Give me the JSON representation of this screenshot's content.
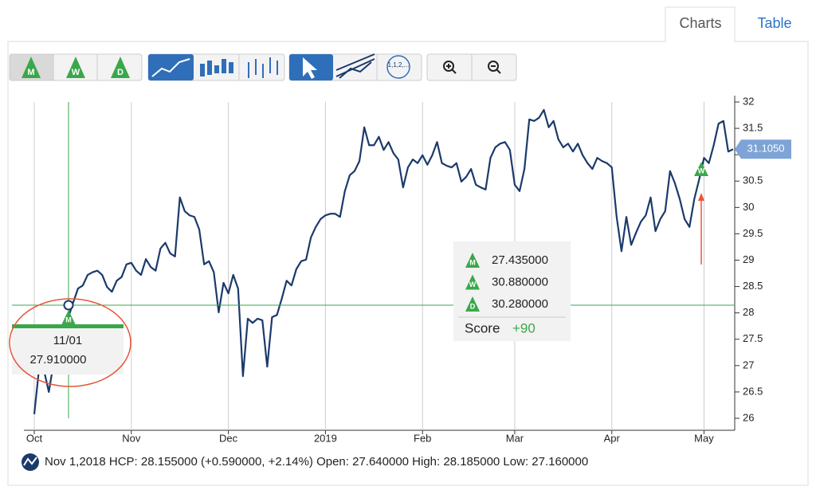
{
  "tabs": [
    "Charts",
    "Table"
  ],
  "toolbar": {
    "periods": [
      "M",
      "W",
      "D"
    ]
  },
  "chart_data": {
    "type": "line",
    "color": "#1b3a6b",
    "categories": [
      "Oct",
      null,
      null,
      null,
      null,
      null,
      null,
      null,
      null,
      null,
      null,
      null,
      null,
      null,
      null,
      null,
      null,
      null,
      null,
      null,
      "Nov",
      null,
      null,
      null,
      null,
      null,
      null,
      null,
      null,
      null,
      null,
      null,
      null,
      null,
      null,
      null,
      null,
      null,
      null,
      null,
      "Dec",
      null,
      null,
      null,
      null,
      null,
      null,
      null,
      null,
      null,
      null,
      null,
      null,
      null,
      null,
      null,
      null,
      null,
      null,
      null,
      "2019",
      null,
      null,
      null,
      null,
      null,
      null,
      null,
      null,
      null,
      null,
      null,
      null,
      null,
      null,
      null,
      null,
      null,
      null,
      null,
      "Feb",
      null,
      null,
      null,
      null,
      null,
      null,
      null,
      null,
      null,
      null,
      null,
      null,
      null,
      null,
      null,
      null,
      null,
      null,
      "Mar",
      null,
      null,
      null,
      null,
      null,
      null,
      null,
      null,
      null,
      null,
      null,
      null,
      null,
      null,
      null,
      null,
      null,
      null,
      null,
      "Apr",
      null,
      null,
      null,
      null,
      null,
      null,
      null,
      null,
      null,
      null,
      null,
      null,
      null,
      null,
      null,
      null,
      null,
      null,
      "May",
      null,
      null,
      null,
      null,
      null,
      null
    ],
    "values": [
      26.08,
      26.95,
      26.91,
      26.5,
      27.06,
      27.36,
      27.62,
      27.91,
      28.19,
      28.46,
      28.52,
      28.72,
      28.77,
      28.8,
      28.72,
      28.49,
      28.4,
      28.61,
      28.68,
      28.92,
      28.95,
      28.8,
      28.72,
      29.02,
      28.87,
      28.8,
      29.22,
      29.33,
      29.13,
      29.07,
      30.19,
      29.93,
      29.85,
      29.82,
      29.58,
      28.92,
      28.98,
      28.77,
      28.01,
      28.57,
      28.37,
      28.72,
      28.46,
      26.8,
      27.89,
      27.81,
      27.89,
      27.86,
      26.98,
      27.92,
      27.96,
      28.27,
      28.61,
      28.52,
      28.83,
      28.98,
      29.01,
      29.43,
      29.63,
      29.78,
      29.85,
      29.88,
      29.88,
      29.82,
      30.31,
      30.61,
      30.69,
      30.88,
      31.52,
      31.18,
      31.18,
      31.34,
      31.09,
      31.24,
      31.03,
      30.91,
      30.38,
      30.76,
      30.91,
      30.84,
      30.99,
      30.81,
      30.99,
      31.24,
      30.84,
      30.79,
      30.76,
      30.84,
      30.49,
      30.58,
      30.73,
      30.43,
      30.38,
      30.34,
      30.94,
      31.14,
      31.21,
      31.24,
      31.09,
      30.43,
      30.31,
      30.73,
      31.67,
      31.64,
      31.7,
      31.85,
      31.52,
      31.64,
      31.29,
      31.14,
      31.21,
      31.06,
      31.21,
      30.99,
      30.84,
      30.73,
      30.94,
      30.88,
      30.84,
      30.76,
      29.82,
      29.17,
      29.82,
      29.29,
      29.52,
      29.73,
      29.85,
      30.19,
      29.55,
      29.78,
      29.93,
      30.69,
      30.46,
      30.16,
      29.78,
      29.63,
      30.16,
      30.53,
      30.94,
      30.84,
      31.18,
      31.59,
      31.64,
      31.06,
      31.105
    ],
    "ylim": [
      26,
      32
    ],
    "yticks": [
      26,
      26.5,
      27,
      27.5,
      28,
      28.5,
      29,
      29.5,
      30,
      30.5,
      31,
      31.5,
      32
    ],
    "grid": true
  },
  "price_tag": "31.1050",
  "crosshair": {
    "date": "11/01",
    "value": "27.910000"
  },
  "signals": {
    "rows": [
      {
        "letter": "M",
        "value": "27.435000"
      },
      {
        "letter": "W",
        "value": "30.880000"
      },
      {
        "letter": "D",
        "value": "30.280000"
      }
    ],
    "score_label": "Score",
    "score": "+90"
  },
  "status": "Nov 1,2018 HCP: 28.155000 (+0.590000, +2.14%) Open: 27.640000 High: 28.185000 Low: 27.160000"
}
